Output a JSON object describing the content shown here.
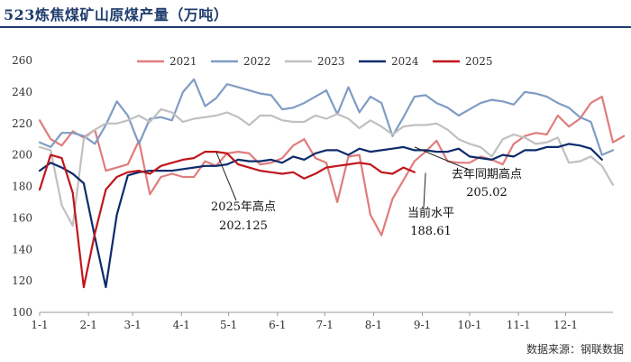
{
  "title": "523炼焦煤矿山原煤产量（万吨）",
  "source": "数据来源：钢联数据",
  "chart_data": {
    "type": "line",
    "title": "523炼焦煤矿山原煤产量（万吨）",
    "xlabel": "",
    "ylabel": "",
    "ylim": [
      100,
      260
    ],
    "yticks": [
      100,
      120,
      140,
      160,
      180,
      200,
      220,
      240,
      260
    ],
    "xlim": [
      1,
      53
    ],
    "month_ticks": [
      {
        "label": "1-1",
        "week": 1
      },
      {
        "label": "2-1",
        "week": 5.43
      },
      {
        "label": "3-1",
        "week": 9.43
      },
      {
        "label": "4-1",
        "week": 13.86
      },
      {
        "label": "5-1",
        "week": 18.14
      },
      {
        "label": "6-1",
        "week": 22.57
      },
      {
        "label": "7-1",
        "week": 26.86
      },
      {
        "label": "8-1",
        "week": 31.29
      },
      {
        "label": "9-1",
        "week": 35.71
      },
      {
        "label": "10-1",
        "week": 40.0
      },
      {
        "label": "11-1",
        "week": 44.43
      },
      {
        "label": "12-1",
        "week": 48.71
      }
    ],
    "grid": false,
    "legend_position": "top",
    "series": [
      {
        "name": "2021",
        "color": "#e07c7c",
        "values": [
          222,
          210,
          206,
          215,
          211,
          216,
          190,
          192,
          194,
          209,
          175,
          186,
          188,
          186,
          186,
          196,
          193,
          201,
          202,
          201,
          194,
          195,
          198,
          206,
          210,
          198,
          195,
          170,
          199,
          200,
          162,
          149,
          172,
          184,
          196,
          202,
          209,
          196,
          195,
          195,
          199,
          197,
          194,
          207,
          212,
          214,
          213,
          225,
          218,
          223,
          233,
          237,
          208,
          212
        ]
      },
      {
        "name": "2022",
        "color": "#7f9cc4",
        "values": [
          208,
          205,
          214,
          214,
          212,
          207,
          219,
          234,
          225,
          207,
          223,
          224,
          222,
          240,
          248,
          231,
          236,
          245,
          243,
          241,
          239,
          238,
          229,
          230,
          233,
          237,
          241,
          226,
          243,
          227,
          237,
          233,
          212,
          224,
          237,
          238,
          233,
          230,
          225,
          229,
          233,
          235,
          234,
          232,
          240,
          239,
          237,
          233,
          230,
          224,
          221,
          200,
          203
        ]
      },
      {
        "name": "2023",
        "color": "#c0c0c0",
        "values": [
          205,
          203,
          168,
          155,
          210,
          216,
          220,
          220,
          222,
          225,
          221,
          229,
          227,
          221,
          223,
          224,
          225,
          227,
          224,
          219,
          225,
          225,
          222,
          221,
          221,
          225,
          223,
          226,
          223,
          217,
          222,
          218,
          213,
          218,
          219,
          219,
          220,
          216,
          210,
          207,
          205,
          199,
          210,
          213,
          211,
          207,
          208,
          211,
          195,
          196,
          199,
          193,
          181
        ]
      },
      {
        "name": "2024",
        "color": "#0d2b6b",
        "values": [
          190,
          195,
          192,
          188,
          182,
          148,
          116,
          162,
          187,
          189,
          190,
          190,
          190,
          191,
          192,
          193,
          193,
          194,
          197,
          196,
          196,
          197,
          195,
          199,
          197,
          201,
          203,
          203,
          200,
          204,
          202,
          203,
          204,
          205,
          203,
          203,
          202,
          202,
          204,
          199,
          198,
          197,
          200,
          199,
          203,
          203,
          205,
          205,
          207,
          206,
          204,
          197
        ]
      },
      {
        "name": "2025",
        "color": "#c0161c",
        "values": [
          178,
          200,
          198,
          176,
          116,
          150,
          178,
          186,
          189,
          190,
          188,
          193,
          195,
          197,
          198,
          202,
          202,
          201,
          194,
          192,
          190,
          189,
          188,
          189,
          185,
          188,
          192,
          193,
          194,
          195,
          194,
          189,
          188,
          192,
          189
        ]
      }
    ],
    "annotations": [
      {
        "line1": "2025年高点",
        "line2": "202.125",
        "x": 17,
        "y": 202.125
      },
      {
        "line1": "去年同期高点",
        "line2": "205.02",
        "x": 35,
        "y": 205.02
      },
      {
        "line1": "当前水平",
        "line2": "188.61",
        "x": 36,
        "y": 188.61
      }
    ]
  }
}
